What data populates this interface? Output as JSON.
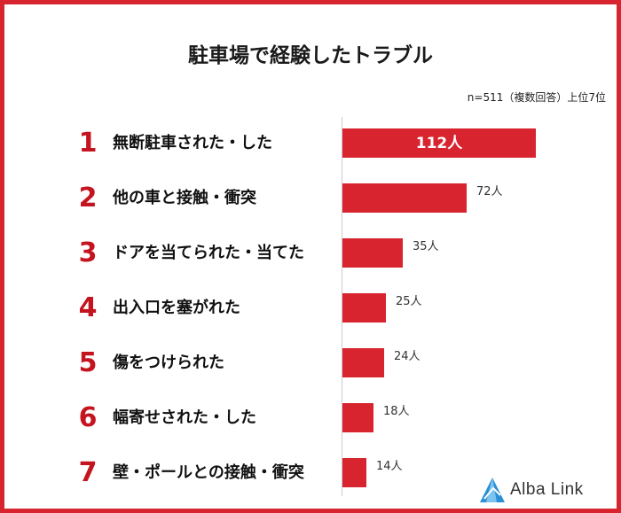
{
  "chart_data": {
    "type": "bar",
    "orientation": "horizontal",
    "title": "駐車場で経験したトラブル",
    "note": "n=511（複数回答）上位7位",
    "unit": "人",
    "xlim": [
      0,
      112
    ],
    "grid": false,
    "legend": "none",
    "ranks": [
      "1",
      "2",
      "3",
      "4",
      "5",
      "6",
      "7"
    ],
    "categories": [
      "無断駐車された・した",
      "他の車と接触・衝突",
      "ドアを当てられた・当てた",
      "出入口を塞がれた",
      "傷をつけられた",
      "幅寄せされた・した",
      "壁・ポールとの接触・衝突"
    ],
    "values": [
      112,
      72,
      35,
      25,
      24,
      18,
      14
    ],
    "value_labels": [
      "112人",
      "72人",
      "35人",
      "25人",
      "24人",
      "18人",
      "14人"
    ],
    "bar_color": "#d7242f",
    "rank_color": "#c4141f"
  },
  "logo": {
    "text": "Alba Link",
    "icon": "triangle-logo-icon",
    "color": "#2b8fd6"
  }
}
